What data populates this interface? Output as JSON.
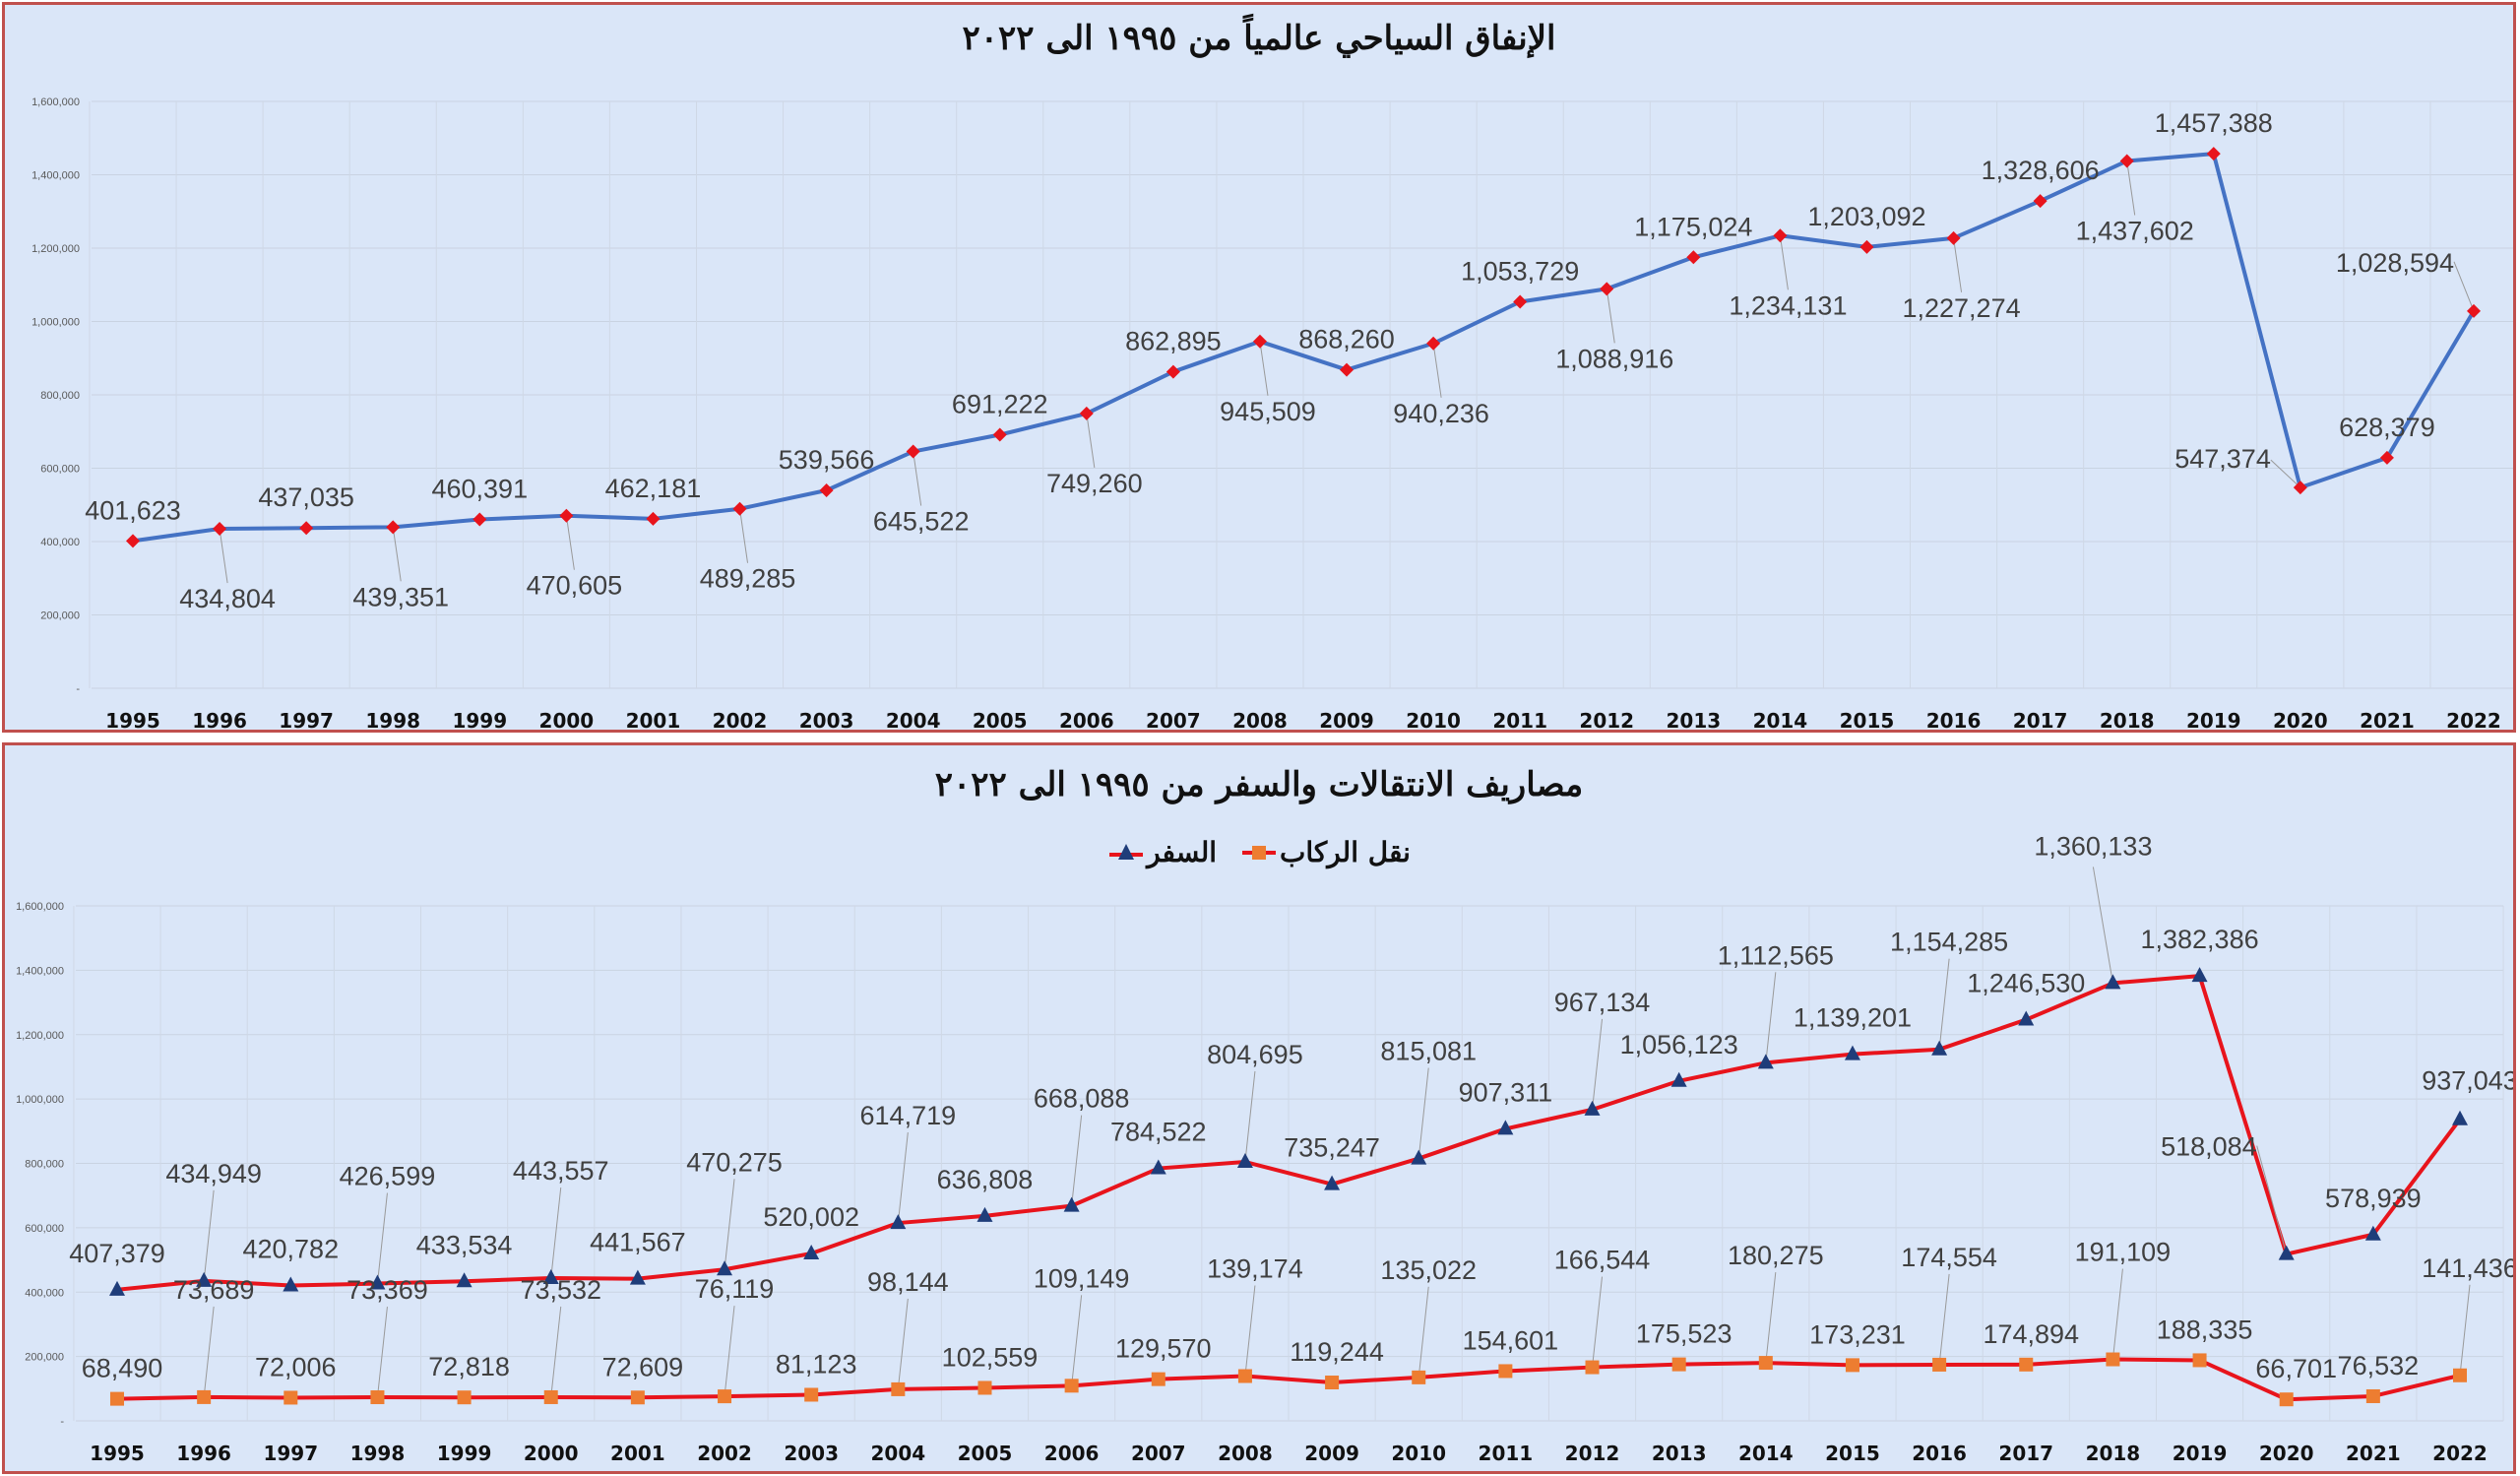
{
  "chart_data": [
    {
      "type": "line",
      "title": "الإنفاق السياحي عالمياً من ١٩٩٥ الى ٢٠٢٢",
      "categories": [
        "1995",
        "1996",
        "1997",
        "1998",
        "1999",
        "2000",
        "2001",
        "2002",
        "2003",
        "2004",
        "2005",
        "2006",
        "2007",
        "2008",
        "2009",
        "2010",
        "2011",
        "2012",
        "2013",
        "2014",
        "2015",
        "2016",
        "2017",
        "2018",
        "2019",
        "2020",
        "2021",
        "2022"
      ],
      "series": [
        {
          "values": [
            401623,
            434804,
            437035,
            439351,
            460391,
            470605,
            462181,
            489285,
            539566,
            645522,
            691222,
            749260,
            862895,
            945509,
            868260,
            940236,
            1053729,
            1088916,
            1175024,
            1234131,
            1203092,
            1227274,
            1328606,
            1437602,
            1457388,
            547374,
            628379,
            1028594
          ],
          "color": "#4472c4",
          "marker": "diamond",
          "marker_color": "#e8141c"
        }
      ],
      "ylim": [
        0,
        1600000
      ],
      "yticks": [
        "-",
        "200,000",
        "400,000",
        "600,000",
        "800,000",
        "1,000,000",
        "1,200,000",
        "1,400,000",
        "1,600,000"
      ],
      "grid": true,
      "legend": "none"
    },
    {
      "type": "line",
      "title": "مصاريف الانتقالات والسفر من ١٩٩٥ الى ٢٠٢٢",
      "categories": [
        "1995",
        "1996",
        "1997",
        "1998",
        "1999",
        "2000",
        "2001",
        "2002",
        "2003",
        "2004",
        "2005",
        "2006",
        "2007",
        "2008",
        "2009",
        "2010",
        "2011",
        "2012",
        "2013",
        "2014",
        "2015",
        "2016",
        "2017",
        "2018",
        "2019",
        "2020",
        "2021",
        "2022"
      ],
      "series": [
        {
          "name": "السفر",
          "values": [
            407379,
            434949,
            420782,
            426599,
            433534,
            443557,
            441567,
            470275,
            520002,
            614719,
            636808,
            668088,
            784522,
            804695,
            735247,
            815081,
            907311,
            967134,
            1056123,
            1112565,
            1139201,
            1154285,
            1246530,
            1360133,
            1382386,
            518084,
            578939,
            937043
          ],
          "color": "#e8141c",
          "marker": "triangle",
          "marker_color": "#1f3d7a"
        },
        {
          "name": "نقل الركاب",
          "values": [
            68490,
            73689,
            72006,
            73369,
            72818,
            73532,
            72609,
            76119,
            81123,
            98144,
            102559,
            109149,
            129570,
            139174,
            119244,
            135022,
            154601,
            166544,
            175523,
            180275,
            173231,
            174554,
            174894,
            191109,
            188335,
            66701,
            76532,
            141436
          ],
          "color": "#e8141c",
          "marker": "square",
          "marker_color": "#ed7d31"
        }
      ],
      "ylim": [
        0,
        1600000
      ],
      "yticks": [
        "-",
        "200,000",
        "400,000",
        "600,000",
        "800,000",
        "1,000,000",
        "1,200,000",
        "1,400,000",
        "1,600,000"
      ],
      "grid": true,
      "legend": "top"
    }
  ]
}
